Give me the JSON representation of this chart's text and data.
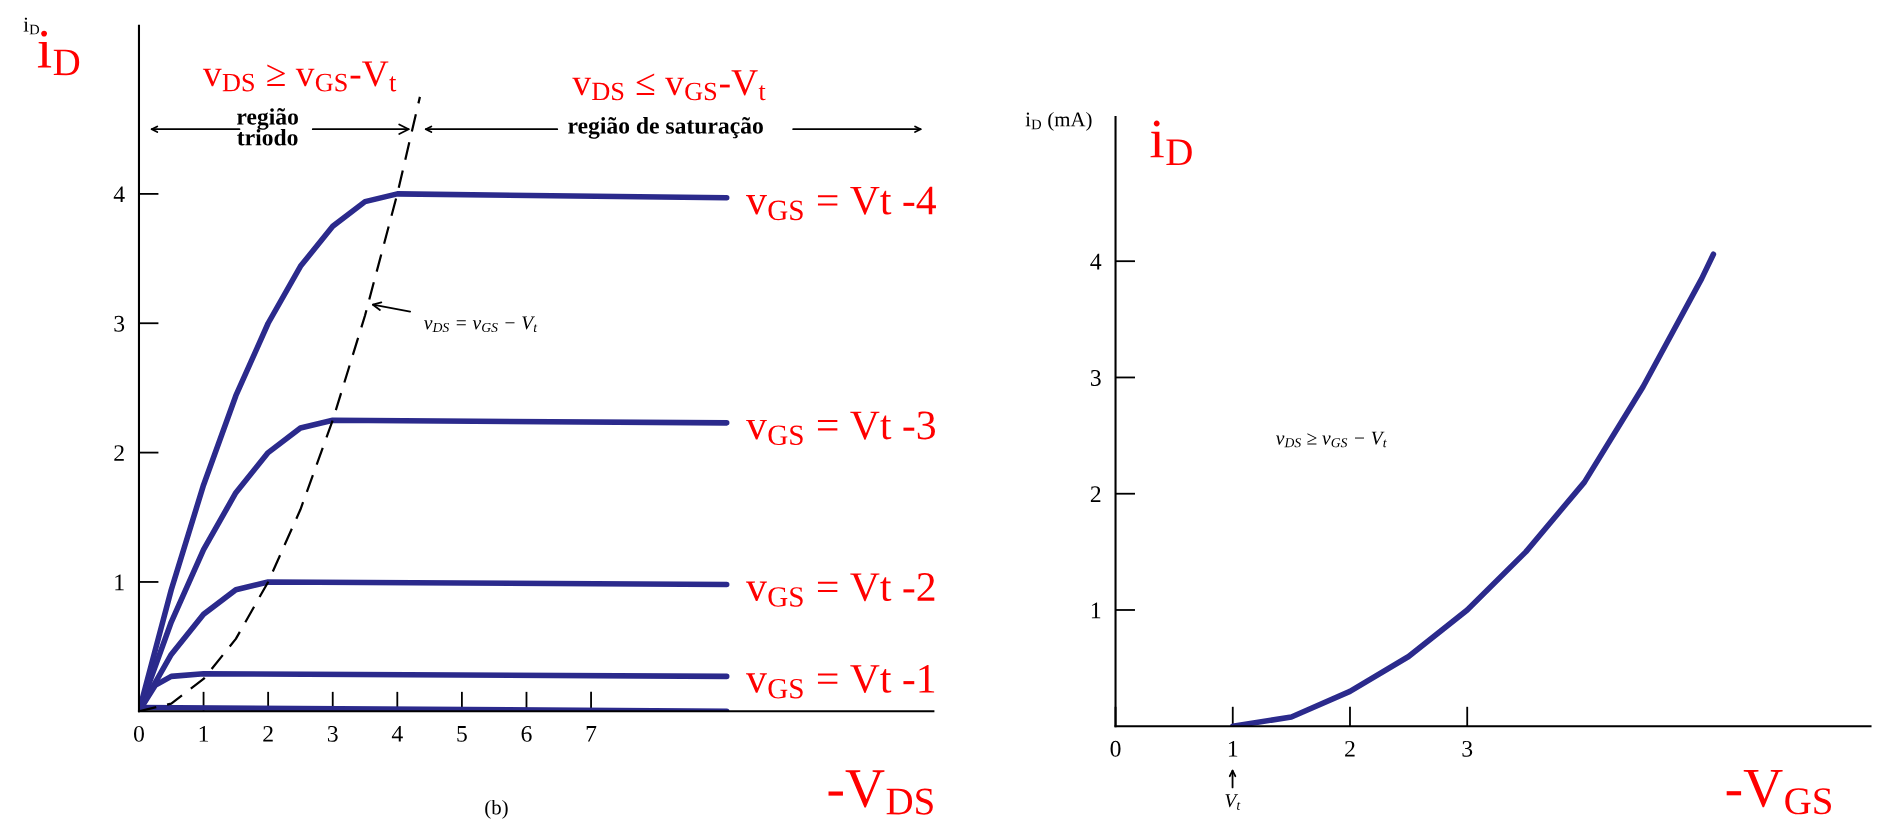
{
  "chart_data": [
    {
      "type": "line",
      "xlabel": "-V$_{DS}$",
      "ylabel": "i$_{D}$",
      "xlim": [
        0,
        12.3
      ],
      "ylim": [
        0,
        5.3
      ],
      "xticks": [
        0,
        1,
        2,
        3,
        4,
        5,
        6,
        7
      ],
      "yticks": [
        1,
        2,
        3,
        4
      ],
      "grid": false,
      "marker": "none",
      "series": [
        {
          "name": "v$_{GS}$ = Vt -4",
          "color": "#2b2a8c",
          "x": [
            0,
            0.5,
            1,
            1.5,
            2,
            2.5,
            3,
            3.5,
            4,
            9.1
          ],
          "values": [
            0,
            0.94,
            1.75,
            2.44,
            3,
            3.44,
            3.75,
            3.94,
            4,
            3.97
          ]
        },
        {
          "name": "v$_{GS}$ = Vt -3",
          "color": "#2b2a8c",
          "x": [
            0,
            0.5,
            1,
            1.5,
            2,
            2.5,
            3,
            9.1
          ],
          "values": [
            0,
            0.69,
            1.25,
            1.69,
            2,
            2.19,
            2.25,
            2.23
          ]
        },
        {
          "name": "v$_{GS}$ = Vt -2",
          "color": "#2b2a8c",
          "x": [
            0,
            0.5,
            1,
            1.5,
            2,
            9.1
          ],
          "values": [
            0,
            0.44,
            0.75,
            0.94,
            1,
            0.98
          ]
        },
        {
          "name": "v$_{GS}$ = Vt -1",
          "color": "#2b2a8c",
          "x": [
            0,
            0.25,
            0.5,
            1,
            9.1
          ],
          "values": [
            0,
            0.2,
            0.27,
            0.29,
            0.27
          ]
        },
        {
          "color": "#2b2a8c",
          "x": [
            0,
            9.1
          ],
          "values": [
            0.03,
            0
          ]
        },
        {
          "color": "#000000",
          "line_style": "dashed",
          "x": [
            0,
            0.5,
            1,
            1.5,
            2,
            2.5,
            3,
            3.5,
            4,
            4.35
          ],
          "values": [
            0,
            0.06,
            0.25,
            0.56,
            1,
            1.56,
            2.25,
            3.06,
            4,
            4.75
          ]
        }
      ],
      "annotations": [
        "i$_{D}$",
        "v$_{DS}$ ≥ v$_{GS}$-V$_{t}$",
        {
          "text": "região\ntriodo",
          "x": 4.25,
          "y": 4.5
        },
        "v$_{DS}$ ≤ v$_{GS}$-V$_{t}$",
        "região de saturação",
        "(b)",
        {
          "text": "v$_{DS}$ = v$_{GS}$ − V$_{t}$",
          "x": 3.55,
          "y": 3.15
        }
      ]
    },
    {
      "type": "line",
      "xlabel": "-V$_{GS}$",
      "ylabel": "i$_{D}$ (mA)",
      "xlim": [
        0,
        6.44
      ],
      "ylim": [
        0,
        5.24
      ],
      "xticks": [
        0,
        1,
        2,
        3
      ],
      "yticks": [
        1,
        2,
        3,
        4
      ],
      "grid": false,
      "marker": "none",
      "series": [
        {
          "color": "#2b2a8c",
          "x": [
            1,
            1.5,
            2,
            2.5,
            3,
            3.5,
            4,
            4.5,
            5,
            5.1
          ],
          "values": [
            0,
            0.08,
            0.3,
            0.6,
            1.0,
            1.5,
            2.1,
            2.92,
            3.85,
            4.06
          ]
        }
      ],
      "annotations": [
        "i$_{D}$",
        "v$_{DS}$ ≥ v$_{GS}$ − V$_{t}$",
        "V$_{t}$"
      ]
    }
  ]
}
